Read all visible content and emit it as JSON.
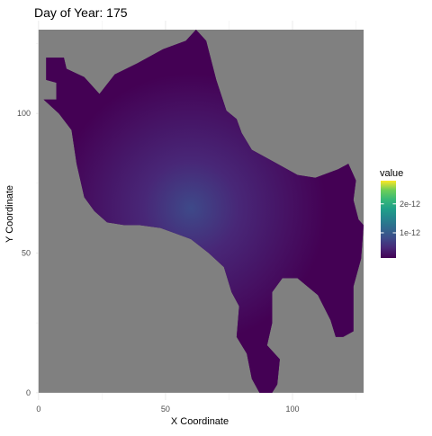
{
  "chart_data": {
    "type": "heatmap",
    "title": "Day of Year: 175",
    "xlabel": "X Coordinate",
    "ylabel": "Y Coordinate",
    "xlim": [
      -1,
      128
    ],
    "ylim": [
      -1,
      130
    ],
    "xticks": [
      0,
      50,
      100
    ],
    "yticks": [
      0,
      50,
      100
    ],
    "grid": true,
    "background_color": "#808080",
    "legend": {
      "title": "value",
      "position": "right",
      "colormap": "viridis",
      "range": [
        1.3e-13,
        2.8e-12
      ],
      "ticks": [
        {
          "value": 1e-12,
          "label": "1e-12"
        },
        {
          "value": 2e-12,
          "label": "2e-12"
        }
      ]
    },
    "region_outline": [
      [
        2,
        105
      ],
      [
        7,
        105
      ],
      [
        7,
        111
      ],
      [
        3,
        112
      ],
      [
        3,
        120
      ],
      [
        10,
        120
      ],
      [
        11,
        116
      ],
      [
        18,
        113
      ],
      [
        24,
        107
      ],
      [
        30,
        114
      ],
      [
        39,
        118
      ],
      [
        49,
        123
      ],
      [
        58,
        126
      ],
      [
        62,
        130
      ],
      [
        66,
        126
      ],
      [
        70,
        112
      ],
      [
        74,
        101
      ],
      [
        78,
        98
      ],
      [
        80,
        93
      ],
      [
        84,
        87
      ],
      [
        92,
        83
      ],
      [
        102,
        78
      ],
      [
        109,
        77
      ],
      [
        118,
        80
      ],
      [
        122,
        82
      ],
      [
        125,
        76
      ],
      [
        124,
        69
      ],
      [
        126,
        62
      ],
      [
        128,
        60
      ],
      [
        127,
        48
      ],
      [
        124,
        38
      ],
      [
        124,
        22
      ],
      [
        120,
        20
      ],
      [
        117,
        20
      ],
      [
        115,
        26
      ],
      [
        110,
        35
      ],
      [
        102,
        41
      ],
      [
        96,
        41
      ],
      [
        92,
        36
      ],
      [
        92,
        25
      ],
      [
        90,
        17
      ],
      [
        95,
        12
      ],
      [
        94,
        3
      ],
      [
        92,
        0
      ],
      [
        87,
        0
      ],
      [
        84,
        5
      ],
      [
        82,
        14
      ],
      [
        78,
        20
      ],
      [
        79,
        31
      ],
      [
        76,
        36
      ],
      [
        73,
        45
      ],
      [
        67,
        50
      ],
      [
        60,
        55
      ],
      [
        54,
        57
      ],
      [
        48,
        59
      ],
      [
        40,
        60
      ],
      [
        34,
        60
      ],
      [
        27,
        61
      ],
      [
        22,
        65
      ],
      [
        18,
        70
      ],
      [
        15,
        82
      ],
      [
        13,
        94
      ],
      [
        8,
        100
      ]
    ],
    "peak": {
      "x": 60,
      "y": 66,
      "value": 8e-13
    },
    "value_range_in_region": [
      1.3e-13,
      8e-13
    ]
  }
}
